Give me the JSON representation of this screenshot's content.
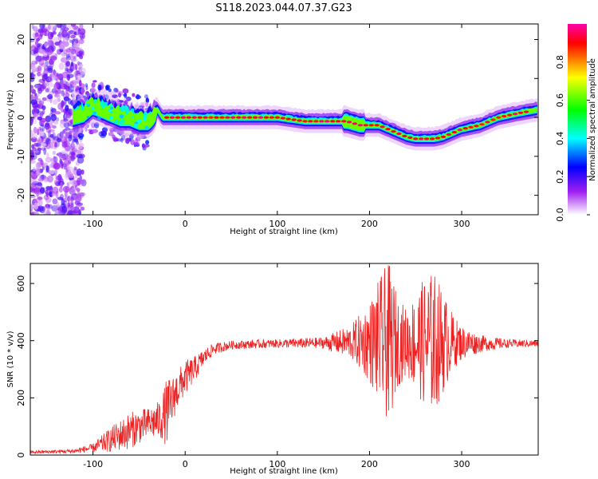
{
  "title": "S118.2023.044.07.37.G23",
  "chart_data": [
    {
      "type": "heatmap",
      "xlabel": "Height of straight line (km)",
      "ylabel": "Frequency (Hz)",
      "xlim": [
        -168,
        383
      ],
      "ylim": [
        -25,
        24
      ],
      "xticks": [
        -100,
        0,
        100,
        200,
        300
      ],
      "yticks": [
        -20,
        -10,
        0,
        10,
        20
      ],
      "colorbar": {
        "label": "Normalized spectral amplitude",
        "range": [
          0,
          1
        ],
        "ticks": [
          "0.0",
          "0.2",
          "0.4",
          "0.6",
          "0.8"
        ],
        "colors": [
          "#ffffff",
          "#a020f0",
          "#0000ff",
          "#00ffff",
          "#00ff00",
          "#ffff00",
          "#ff0000",
          "#ff00aa"
        ]
      },
      "ridge": {
        "x": [
          -125,
          -110,
          -100,
          -90,
          -80,
          -70,
          -60,
          -50,
          -40,
          -35,
          -30,
          -25,
          -20,
          0,
          50,
          100,
          130,
          150,
          175,
          190,
          200,
          210,
          220,
          230,
          240,
          250,
          260,
          270,
          280,
          290,
          300,
          320,
          340,
          360,
          383
        ],
        "freq": [
          0,
          1,
          3,
          2,
          1,
          0,
          0,
          -1,
          -1,
          0,
          2,
          0,
          0,
          0,
          0,
          0,
          -1,
          -1,
          -1,
          -2,
          -2,
          -2,
          -3,
          -4,
          -5,
          -5.5,
          -5.5,
          -5.5,
          -5,
          -4,
          -3,
          -2,
          0,
          1,
          2
        ]
      }
    },
    {
      "type": "line",
      "xlabel": "Height of straight line (km)",
      "ylabel": "SNR (10 * v/v)",
      "xlim": [
        -168,
        383
      ],
      "ylim": [
        0,
        670
      ],
      "xticks": [
        -100,
        0,
        100,
        200,
        300
      ],
      "yticks": [
        0,
        200,
        400,
        600
      ],
      "color": "#ee2222",
      "envelope": {
        "x": [
          -168,
          -140,
          -120,
          -100,
          -90,
          -80,
          -70,
          -60,
          -50,
          -40,
          -30,
          -25,
          -20,
          -15,
          -10,
          0,
          10,
          20,
          30,
          50,
          100,
          150,
          180,
          190,
          200,
          210,
          220,
          225,
          230,
          240,
          250,
          260,
          270,
          280,
          290,
          300,
          320,
          350,
          383
        ],
        "mean": [
          10,
          12,
          14,
          25,
          40,
          55,
          70,
          85,
          100,
          110,
          120,
          130,
          150,
          180,
          220,
          270,
          300,
          340,
          370,
          385,
          390,
          392,
          395,
          395,
          395,
          395,
          395,
          395,
          395,
          395,
          395,
          395,
          395,
          395,
          395,
          392,
          390,
          390,
          390
        ],
        "amp": [
          6,
          6,
          8,
          15,
          30,
          45,
          55,
          65,
          60,
          55,
          65,
          80,
          120,
          90,
          70,
          60,
          45,
          30,
          20,
          15,
          15,
          20,
          60,
          100,
          140,
          220,
          280,
          240,
          160,
          120,
          170,
          230,
          250,
          180,
          100,
          60,
          30,
          15,
          12
        ]
      }
    }
  ]
}
